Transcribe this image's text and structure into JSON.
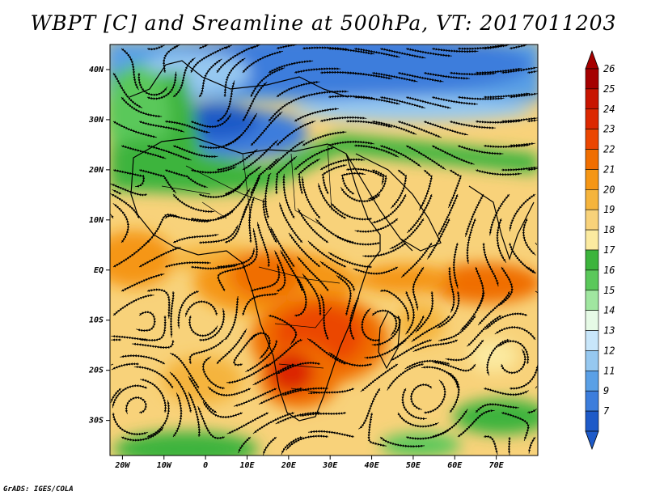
{
  "title": "WBPT [C] and Sreamline at 500hPa, VT: 2017011203",
  "credit": "GrADS: IGES/COLA",
  "map": {
    "lon_range": [
      -23,
      80
    ],
    "lat_range": [
      -37,
      45
    ],
    "lat_ticks": [
      {
        "value": 40,
        "label": "40N"
      },
      {
        "value": 30,
        "label": "30N"
      },
      {
        "value": 20,
        "label": "20N"
      },
      {
        "value": 10,
        "label": "10N"
      },
      {
        "value": 0,
        "label": "EQ"
      },
      {
        "value": -10,
        "label": "10S"
      },
      {
        "value": -20,
        "label": "20S"
      },
      {
        "value": -30,
        "label": "30S"
      }
    ],
    "lon_ticks": [
      {
        "value": -20,
        "label": "20W"
      },
      {
        "value": -10,
        "label": "10W"
      },
      {
        "value": 0,
        "label": "0"
      },
      {
        "value": 10,
        "label": "10E"
      },
      {
        "value": 20,
        "label": "20E"
      },
      {
        "value": 30,
        "label": "30E"
      },
      {
        "value": 40,
        "label": "40E"
      },
      {
        "value": 50,
        "label": "50E"
      },
      {
        "value": 60,
        "label": "60E"
      },
      {
        "value": 70,
        "label": "70E"
      }
    ]
  },
  "colorbar": {
    "levels": [
      "26",
      "25",
      "24",
      "23",
      "22",
      "21",
      "20",
      "19",
      "18",
      "17",
      "16",
      "15",
      "14",
      "13",
      "12",
      "11",
      "9",
      "7"
    ],
    "colors": [
      "#a50000",
      "#c81400",
      "#dc2800",
      "#eb4600",
      "#f06e00",
      "#f59614",
      "#f5b43c",
      "#f8d27a",
      "#fbeaa0",
      "#3cb43c",
      "#5ac85a",
      "#a0e6a0",
      "#e6fae6",
      "#c8e6fa",
      "#96c8f0",
      "#5aa0e6",
      "#3c7ddc",
      "#1e5ac8"
    ],
    "top_color": "#a50000",
    "bottom_color": "#1e5ac8"
  }
}
